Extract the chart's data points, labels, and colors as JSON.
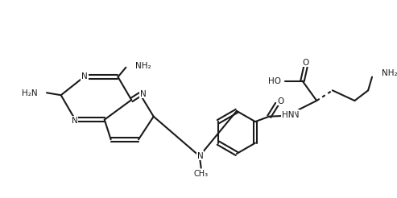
{
  "bg": "#ffffff",
  "lc": "#1a1a1a",
  "lw": 1.5,
  "fs": 7.5
}
